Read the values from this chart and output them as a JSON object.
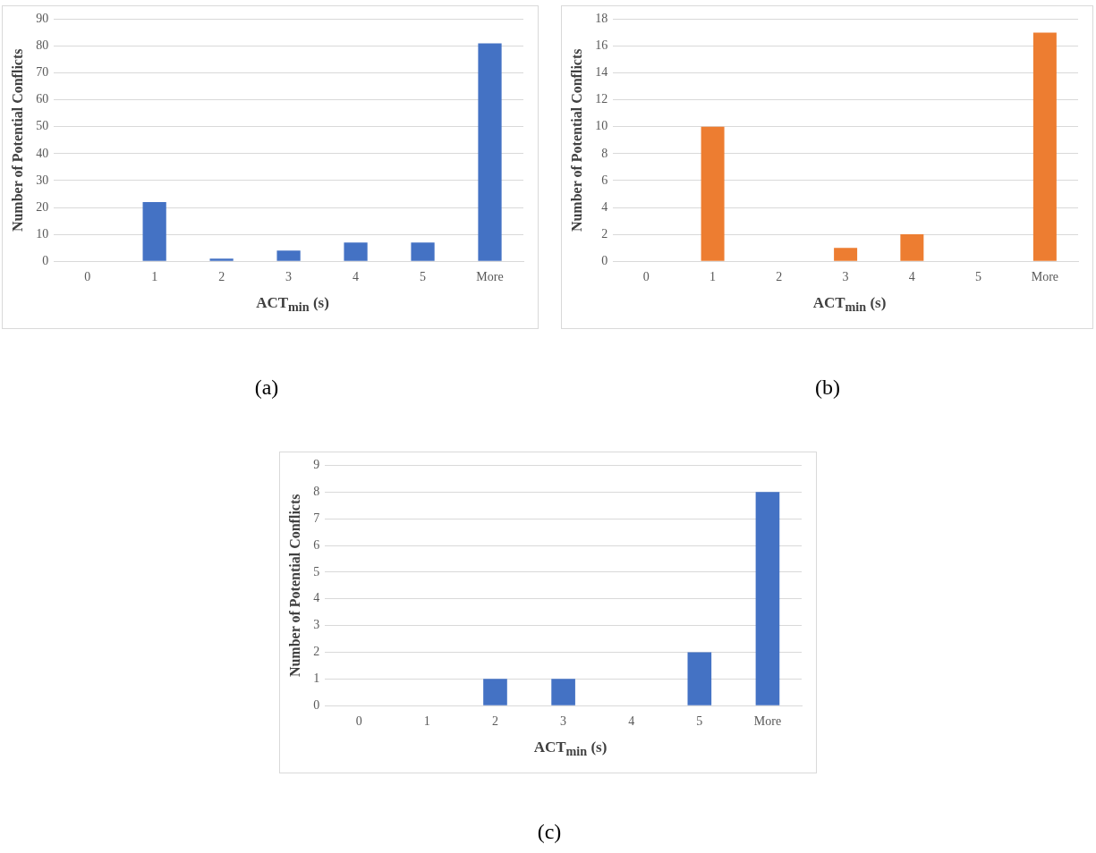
{
  "chart_data": [
    {
      "type": "bar",
      "categories": [
        "0",
        "1",
        "2",
        "3",
        "4",
        "5",
        "More"
      ],
      "values": [
        0,
        22,
        1,
        4,
        7,
        7,
        81
      ],
      "color": "#4472c4",
      "ylim": [
        0,
        90
      ],
      "yticks": [
        0,
        10,
        20,
        30,
        40,
        50,
        60,
        70,
        80,
        90
      ],
      "grid": "y",
      "xlabel": "ACT$_{min}$ (s)",
      "ylabel": "Number of Potential Conflicts",
      "annotations": [
        "(a)"
      ]
    },
    {
      "type": "bar",
      "categories": [
        "0",
        "1",
        "2",
        "3",
        "4",
        "5",
        "More"
      ],
      "values": [
        0,
        10,
        0,
        1,
        2,
        0,
        17
      ],
      "color": "#ed7d31",
      "ylim": [
        0,
        18
      ],
      "yticks": [
        0,
        2,
        4,
        6,
        8,
        10,
        12,
        14,
        16,
        18
      ],
      "grid": "y",
      "xlabel": "ACT$_{min}$ (s)",
      "ylabel": "Number of Potential Conflicts",
      "annotations": [
        "(b)"
      ]
    },
    {
      "type": "bar",
      "categories": [
        "0",
        "1",
        "2",
        "3",
        "4",
        "5",
        "More"
      ],
      "values": [
        0,
        0,
        1,
        1,
        0,
        2,
        8
      ],
      "color": "#4472c4",
      "ylim": [
        0,
        9
      ],
      "yticks": [
        0,
        1,
        2,
        3,
        4,
        5,
        6,
        7,
        8,
        9
      ],
      "grid": "y",
      "xlabel": "ACT$_{min}$ (s)",
      "ylabel": "Number of Potential Conflicts",
      "annotations": [
        "(c)"
      ]
    }
  ]
}
